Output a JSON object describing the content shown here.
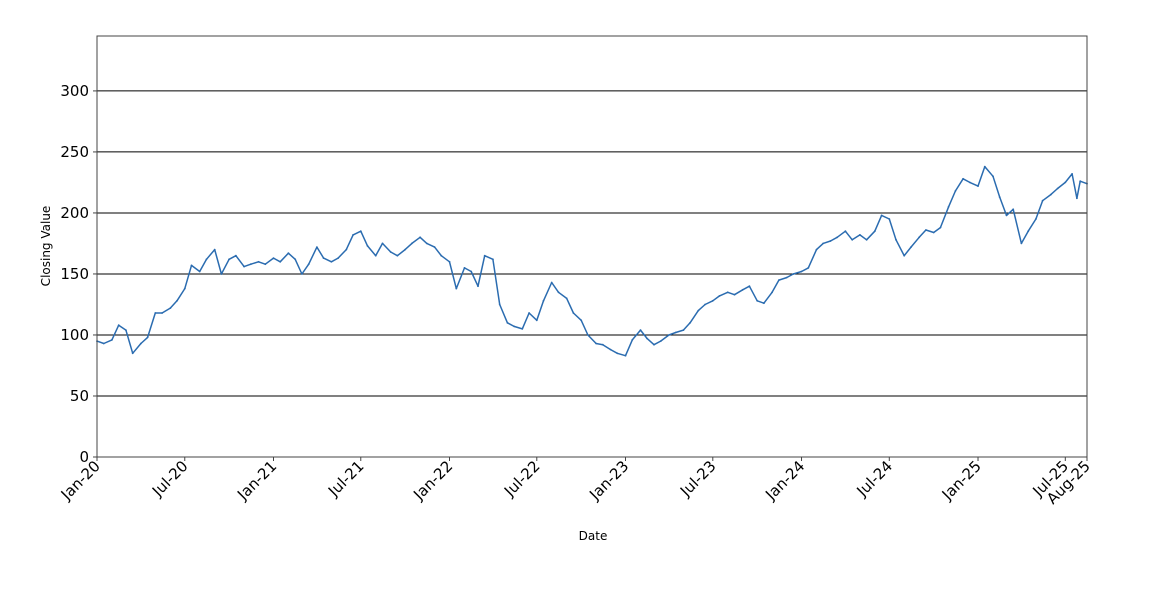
{
  "chart_data": {
    "type": "line",
    "title": "",
    "xlabel": "Date",
    "ylabel": "Closing Value",
    "ylim": [
      0,
      345
    ],
    "xlim": [
      "2020-01-01",
      "2025-08-15"
    ],
    "grid": "horizontal",
    "line_color": "#2b6cb0",
    "y_ticks": [
      0,
      50,
      100,
      150,
      200,
      250,
      300
    ],
    "x_ticks": [
      {
        "label": "Jan-20",
        "date": "2020-01-01"
      },
      {
        "label": "Jul-20",
        "date": "2020-07-01"
      },
      {
        "label": "Jan-21",
        "date": "2021-01-01"
      },
      {
        "label": "Jul-21",
        "date": "2021-07-01"
      },
      {
        "label": "Jan-22",
        "date": "2022-01-01"
      },
      {
        "label": "Jul-22",
        "date": "2022-07-01"
      },
      {
        "label": "Jan-23",
        "date": "2023-01-01"
      },
      {
        "label": "Jul-23",
        "date": "2023-07-01"
      },
      {
        "label": "Jan-24",
        "date": "2024-01-01"
      },
      {
        "label": "Jul-24",
        "date": "2024-07-01"
      },
      {
        "label": "Jan-25",
        "date": "2025-01-01"
      },
      {
        "label": "Jul-25",
        "date": "2025-07-01"
      },
      {
        "label": "Aug-25",
        "date": "2025-08-15"
      }
    ],
    "series": [
      {
        "points": [
          [
            "2020-01-01",
            95
          ],
          [
            "2020-01-15",
            93
          ],
          [
            "2020-02-01",
            96
          ],
          [
            "2020-02-15",
            108
          ],
          [
            "2020-03-01",
            104
          ],
          [
            "2020-03-15",
            85
          ],
          [
            "2020-04-01",
            93
          ],
          [
            "2020-04-15",
            98
          ],
          [
            "2020-05-01",
            118
          ],
          [
            "2020-05-15",
            118
          ],
          [
            "2020-06-01",
            122
          ],
          [
            "2020-06-15",
            128
          ],
          [
            "2020-07-01",
            138
          ],
          [
            "2020-07-15",
            157
          ],
          [
            "2020-08-01",
            152
          ],
          [
            "2020-08-15",
            162
          ],
          [
            "2020-09-01",
            170
          ],
          [
            "2020-09-15",
            150
          ],
          [
            "2020-10-01",
            162
          ],
          [
            "2020-10-15",
            165
          ],
          [
            "2020-11-01",
            156
          ],
          [
            "2020-11-15",
            158
          ],
          [
            "2020-12-01",
            160
          ],
          [
            "2020-12-15",
            158
          ],
          [
            "2021-01-01",
            163
          ],
          [
            "2021-01-15",
            160
          ],
          [
            "2021-02-01",
            167
          ],
          [
            "2021-02-15",
            162
          ],
          [
            "2021-03-01",
            150
          ],
          [
            "2021-03-15",
            158
          ],
          [
            "2021-04-01",
            172
          ],
          [
            "2021-04-15",
            163
          ],
          [
            "2021-05-01",
            160
          ],
          [
            "2021-05-15",
            163
          ],
          [
            "2021-06-01",
            170
          ],
          [
            "2021-06-15",
            182
          ],
          [
            "2021-07-01",
            185
          ],
          [
            "2021-07-15",
            173
          ],
          [
            "2021-08-01",
            165
          ],
          [
            "2021-08-15",
            175
          ],
          [
            "2021-09-01",
            168
          ],
          [
            "2021-09-15",
            165
          ],
          [
            "2021-10-01",
            170
          ],
          [
            "2021-10-15",
            175
          ],
          [
            "2021-11-01",
            180
          ],
          [
            "2021-11-15",
            175
          ],
          [
            "2021-12-01",
            172
          ],
          [
            "2021-12-15",
            165
          ],
          [
            "2022-01-01",
            160
          ],
          [
            "2022-01-15",
            138
          ],
          [
            "2022-02-01",
            155
          ],
          [
            "2022-02-15",
            152
          ],
          [
            "2022-03-01",
            140
          ],
          [
            "2022-03-15",
            165
          ],
          [
            "2022-04-01",
            162
          ],
          [
            "2022-04-15",
            125
          ],
          [
            "2022-05-01",
            110
          ],
          [
            "2022-05-15",
            107
          ],
          [
            "2022-06-01",
            105
          ],
          [
            "2022-06-15",
            118
          ],
          [
            "2022-07-01",
            112
          ],
          [
            "2022-07-15",
            128
          ],
          [
            "2022-08-01",
            143
          ],
          [
            "2022-08-15",
            135
          ],
          [
            "2022-09-01",
            130
          ],
          [
            "2022-09-15",
            118
          ],
          [
            "2022-10-01",
            112
          ],
          [
            "2022-10-15",
            100
          ],
          [
            "2022-11-01",
            93
          ],
          [
            "2022-11-15",
            92
          ],
          [
            "2022-12-01",
            88
          ],
          [
            "2022-12-15",
            85
          ],
          [
            "2023-01-01",
            83
          ],
          [
            "2023-01-15",
            96
          ],
          [
            "2023-02-01",
            104
          ],
          [
            "2023-02-15",
            97
          ],
          [
            "2023-03-01",
            92
          ],
          [
            "2023-03-15",
            95
          ],
          [
            "2023-04-01",
            100
          ],
          [
            "2023-04-15",
            102
          ],
          [
            "2023-05-01",
            104
          ],
          [
            "2023-05-15",
            110
          ],
          [
            "2023-06-01",
            120
          ],
          [
            "2023-06-15",
            125
          ],
          [
            "2023-07-01",
            128
          ],
          [
            "2023-07-15",
            132
          ],
          [
            "2023-08-01",
            135
          ],
          [
            "2023-08-15",
            133
          ],
          [
            "2023-09-01",
            137
          ],
          [
            "2023-09-15",
            140
          ],
          [
            "2023-10-01",
            128
          ],
          [
            "2023-10-15",
            126
          ],
          [
            "2023-11-01",
            135
          ],
          [
            "2023-11-15",
            145
          ],
          [
            "2023-12-01",
            147
          ],
          [
            "2023-12-15",
            150
          ],
          [
            "2024-01-01",
            152
          ],
          [
            "2024-01-15",
            155
          ],
          [
            "2024-02-01",
            170
          ],
          [
            "2024-02-15",
            175
          ],
          [
            "2024-03-01",
            177
          ],
          [
            "2024-03-15",
            180
          ],
          [
            "2024-04-01",
            185
          ],
          [
            "2024-04-15",
            178
          ],
          [
            "2024-05-01",
            182
          ],
          [
            "2024-05-15",
            178
          ],
          [
            "2024-06-01",
            185
          ],
          [
            "2024-06-15",
            198
          ],
          [
            "2024-07-01",
            195
          ],
          [
            "2024-07-15",
            178
          ],
          [
            "2024-08-01",
            165
          ],
          [
            "2024-08-15",
            172
          ],
          [
            "2024-09-01",
            180
          ],
          [
            "2024-09-15",
            186
          ],
          [
            "2024-10-01",
            184
          ],
          [
            "2024-10-15",
            188
          ],
          [
            "2024-11-01",
            205
          ],
          [
            "2024-11-15",
            218
          ],
          [
            "2024-12-01",
            228
          ],
          [
            "2024-12-15",
            225
          ],
          [
            "2025-01-01",
            222
          ],
          [
            "2025-01-15",
            238
          ],
          [
            "2025-02-01",
            230
          ],
          [
            "2025-02-15",
            213
          ],
          [
            "2025-03-01",
            198
          ],
          [
            "2025-03-15",
            203
          ],
          [
            "2025-04-01",
            175
          ],
          [
            "2025-04-15",
            185
          ],
          [
            "2025-05-01",
            195
          ],
          [
            "2025-05-15",
            210
          ],
          [
            "2025-06-01",
            215
          ],
          [
            "2025-06-15",
            220
          ],
          [
            "2025-07-01",
            225
          ],
          [
            "2025-07-15",
            232
          ],
          [
            "2025-07-25",
            212
          ],
          [
            "2025-08-01",
            226
          ],
          [
            "2025-08-15",
            224
          ]
        ]
      }
    ]
  }
}
